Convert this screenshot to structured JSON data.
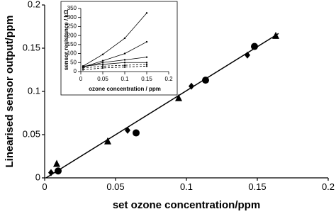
{
  "chart_data": [
    {
      "type": "scatter",
      "x_label": "set ozone concentration/ppm",
      "y_label": "Linearised sensor output/ppm",
      "xlim": [
        0,
        0.2
      ],
      "xticks": [
        0,
        0.05,
        0.1,
        0.15,
        0.2
      ],
      "ylim": [
        0,
        0.2
      ],
      "yticks": [
        0,
        0.05,
        0.1,
        0.15,
        0.2
      ],
      "series": [
        {
          "marker": "diamond",
          "color": "#000000",
          "x": [
            0.0045,
            0.0585,
            0.1035,
            0.143
          ],
          "values": [
            0.006,
            0.055,
            0.106,
            0.142
          ]
        },
        {
          "marker": "circle",
          "color": "#000000",
          "x": [
            0.0095,
            0.0645,
            0.1135,
            0.148
          ],
          "values": [
            0.008,
            0.052,
            0.113,
            0.152
          ]
        },
        {
          "marker": "triangle",
          "color": "#000000",
          "x": [
            0.0085,
            0.0445,
            0.0945,
            0.163
          ],
          "values": [
            0.016,
            0.042,
            0.092,
            0.164
          ]
        },
        {
          "marker": "line",
          "color": "#000000",
          "x": [
            0.001,
            0.165
          ],
          "values": [
            0.0,
            0.167
          ]
        }
      ]
    },
    {
      "type": "line",
      "x_label": "ozone concentration / ppm",
      "y_label": "sensor resistance / kΩ",
      "xlim": [
        0,
        0.2
      ],
      "xticks": [
        0,
        0.05,
        0.1,
        0.15,
        0.2
      ],
      "ylim": [
        0,
        350
      ],
      "yticks": [
        0,
        50,
        100,
        150,
        200,
        250,
        300,
        350
      ],
      "x": [
        0.005,
        0.05,
        0.1,
        0.15
      ],
      "series": [
        {
          "color": "#000000",
          "dashed": false,
          "values": [
            30,
            95,
            185,
            325
          ]
        },
        {
          "color": "#000000",
          "dashed": false,
          "values": [
            25,
            60,
            100,
            165
          ]
        },
        {
          "color": "#000000",
          "dashed": false,
          "values": [
            25,
            50,
            65,
            80
          ]
        },
        {
          "color": "#000000",
          "dashed": false,
          "values": [
            30,
            40,
            50,
            50
          ]
        },
        {
          "color": "#000000",
          "dashed": true,
          "values": [
            20,
            30,
            35,
            40
          ]
        },
        {
          "color": "#000000",
          "dashed": true,
          "values": [
            10,
            20,
            25,
            30
          ]
        }
      ]
    }
  ]
}
